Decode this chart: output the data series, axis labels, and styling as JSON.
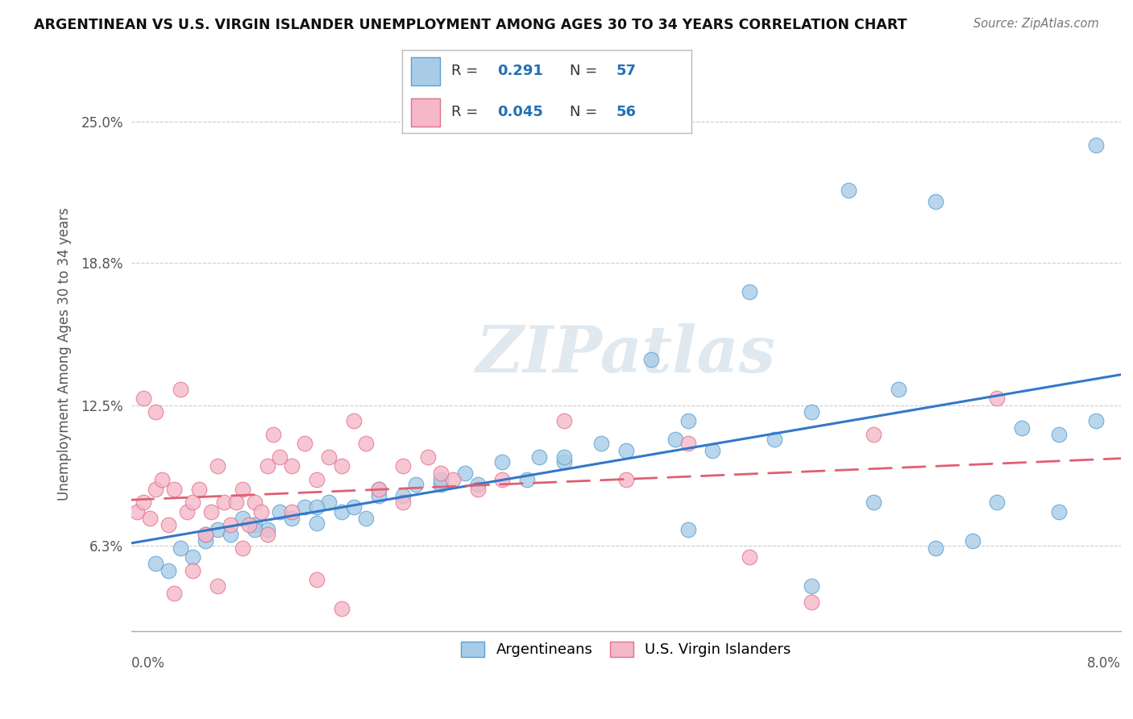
{
  "title": "ARGENTINEAN VS U.S. VIRGIN ISLANDER UNEMPLOYMENT AMONG AGES 30 TO 34 YEARS CORRELATION CHART",
  "source": "Source: ZipAtlas.com",
  "ylabel": "Unemployment Among Ages 30 to 34 years",
  "ytick_values": [
    6.3,
    12.5,
    18.8,
    25.0
  ],
  "xlim": [
    0.0,
    8.0
  ],
  "ylim": [
    2.5,
    27.0
  ],
  "blue_color_face": "#a8cce8",
  "blue_color_edge": "#5a9fd4",
  "pink_color_face": "#f5b8c8",
  "pink_color_edge": "#e07090",
  "blue_line_color": "#3378c8",
  "pink_line_color": "#e06070",
  "watermark": "ZIPatlas",
  "legend_r1": "R = ",
  "legend_v1": "0.291",
  "legend_n1": "N = ",
  "legend_nv1": "57",
  "legend_r2": "R = ",
  "legend_v2": "0.045",
  "legend_n2": "N = ",
  "legend_nv2": "56",
  "blue_x": [
    0.2,
    0.4,
    0.5,
    0.6,
    0.7,
    0.8,
    0.9,
    1.0,
    1.1,
    1.2,
    1.3,
    1.4,
    1.5,
    1.6,
    1.7,
    1.8,
    1.9,
    2.0,
    2.2,
    2.3,
    2.5,
    2.7,
    2.8,
    3.0,
    3.2,
    3.3,
    3.5,
    3.8,
    4.0,
    4.2,
    4.4,
    4.5,
    4.7,
    5.0,
    5.2,
    5.5,
    5.8,
    6.0,
    6.2,
    6.5,
    6.8,
    7.0,
    7.2,
    7.5,
    7.8,
    0.3,
    0.6,
    1.0,
    1.5,
    2.0,
    2.5,
    3.5,
    4.5,
    5.5,
    6.5,
    7.5,
    7.8
  ],
  "blue_y": [
    5.5,
    6.2,
    5.8,
    6.5,
    7.0,
    6.8,
    7.5,
    7.2,
    7.0,
    7.8,
    7.5,
    8.0,
    7.3,
    8.2,
    7.8,
    8.0,
    7.5,
    8.8,
    8.5,
    9.0,
    9.0,
    9.5,
    9.0,
    10.0,
    9.2,
    10.2,
    10.0,
    10.8,
    10.5,
    14.5,
    11.0,
    11.8,
    10.5,
    17.5,
    11.0,
    12.2,
    22.0,
    8.2,
    13.2,
    21.5,
    6.5,
    8.2,
    11.5,
    11.2,
    11.8,
    5.2,
    6.8,
    7.0,
    8.0,
    8.5,
    9.2,
    10.2,
    7.0,
    4.5,
    6.2,
    7.8,
    24.0
  ],
  "pink_x": [
    0.05,
    0.1,
    0.15,
    0.2,
    0.25,
    0.3,
    0.35,
    0.4,
    0.45,
    0.5,
    0.55,
    0.6,
    0.65,
    0.7,
    0.75,
    0.8,
    0.85,
    0.9,
    0.95,
    1.0,
    1.05,
    1.1,
    1.15,
    1.2,
    1.3,
    1.4,
    1.5,
    1.6,
    1.7,
    1.8,
    1.9,
    2.0,
    2.2,
    2.4,
    2.6,
    2.8,
    3.0,
    3.5,
    4.0,
    4.5,
    5.0,
    5.5,
    6.0,
    7.0,
    0.1,
    0.2,
    0.35,
    0.5,
    0.7,
    0.9,
    1.1,
    1.3,
    1.5,
    1.7,
    2.2,
    2.5
  ],
  "pink_y": [
    7.8,
    8.2,
    7.5,
    8.8,
    9.2,
    7.2,
    8.8,
    13.2,
    7.8,
    8.2,
    8.8,
    6.8,
    7.8,
    9.8,
    8.2,
    7.2,
    8.2,
    8.8,
    7.2,
    8.2,
    7.8,
    9.8,
    11.2,
    10.2,
    9.8,
    10.8,
    9.2,
    10.2,
    9.8,
    11.8,
    10.8,
    8.8,
    9.8,
    10.2,
    9.2,
    8.8,
    9.2,
    11.8,
    9.2,
    10.8,
    5.8,
    3.8,
    11.2,
    12.8,
    12.8,
    12.2,
    4.2,
    5.2,
    4.5,
    6.2,
    6.8,
    7.8,
    4.8,
    3.5,
    8.2,
    9.5
  ]
}
